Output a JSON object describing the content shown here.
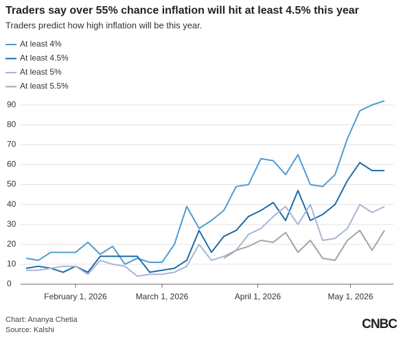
{
  "chart_data": {
    "type": "line",
    "title": "Traders say over 55% chance inflation will hit at least 4.5% this year",
    "subtitle": "Traders predict how high inflation will be this year.",
    "credit": "Chart: Ananya Chetia",
    "source": "Source: Kalshi",
    "logo": "CNBC",
    "x": [
      "2026-01-16",
      "2026-01-20",
      "2026-01-24",
      "2026-01-28",
      "2026-02-01",
      "2026-02-05",
      "2026-02-09",
      "2026-02-13",
      "2026-02-17",
      "2026-02-21",
      "2026-02-25",
      "2026-03-01",
      "2026-03-05",
      "2026-03-09",
      "2026-03-13",
      "2026-03-17",
      "2026-03-21",
      "2026-03-25",
      "2026-03-29",
      "2026-04-02",
      "2026-04-06",
      "2026-04-10",
      "2026-04-14",
      "2026-04-18",
      "2026-04-22",
      "2026-04-26",
      "2026-04-30",
      "2026-05-04",
      "2026-05-08",
      "2026-05-12"
    ],
    "series": [
      {
        "name": "At least 4%",
        "color": "#4b9cd3",
        "values": [
          13,
          12,
          16,
          16,
          16,
          21,
          15,
          19,
          10,
          13,
          11,
          11,
          20,
          39,
          28,
          32,
          37,
          49,
          50,
          63,
          62,
          55,
          65,
          50,
          49,
          55,
          73,
          87,
          90,
          92
        ]
      },
      {
        "name": "At least 4.5%",
        "color": "#1c6aa8",
        "values": [
          8,
          9,
          8,
          6,
          9,
          6,
          14,
          14,
          14,
          14,
          6,
          7,
          8,
          12,
          27,
          16,
          24,
          27,
          34,
          37,
          41,
          32,
          47,
          32,
          35,
          40,
          52,
          61,
          57,
          57
        ]
      },
      {
        "name": "At least 5%",
        "color": "#a7b4d6",
        "values": [
          7,
          7,
          8,
          9,
          9,
          5,
          12,
          10,
          9,
          4,
          5,
          5,
          6,
          9,
          20,
          12,
          14,
          17,
          25,
          28,
          34,
          39,
          30,
          40,
          22,
          23,
          28,
          40,
          36,
          39
        ]
      },
      {
        "name": "At least 5.5%",
        "color": "#a3a3a3",
        "values": [
          null,
          null,
          null,
          null,
          null,
          null,
          null,
          null,
          null,
          null,
          null,
          null,
          null,
          null,
          null,
          null,
          13,
          17,
          19,
          22,
          21,
          26,
          16,
          22,
          13,
          12,
          22,
          27,
          17,
          27
        ]
      }
    ],
    "xlim": [
      "2026-01-15",
      "2026-05-15"
    ],
    "xticks": [
      {
        "value": "2026-02-01",
        "label": "February 1, 2026"
      },
      {
        "value": "2026-03-01",
        "label": "March 1, 2026"
      },
      {
        "value": "2026-04-01",
        "label": "April 1, 2026"
      },
      {
        "value": "2026-05-01",
        "label": "May 1, 2026"
      }
    ],
    "ylim": [
      0,
      93
    ],
    "yticks": [
      0,
      10,
      20,
      30,
      40,
      50,
      60,
      70,
      80,
      90
    ],
    "grid": true
  }
}
